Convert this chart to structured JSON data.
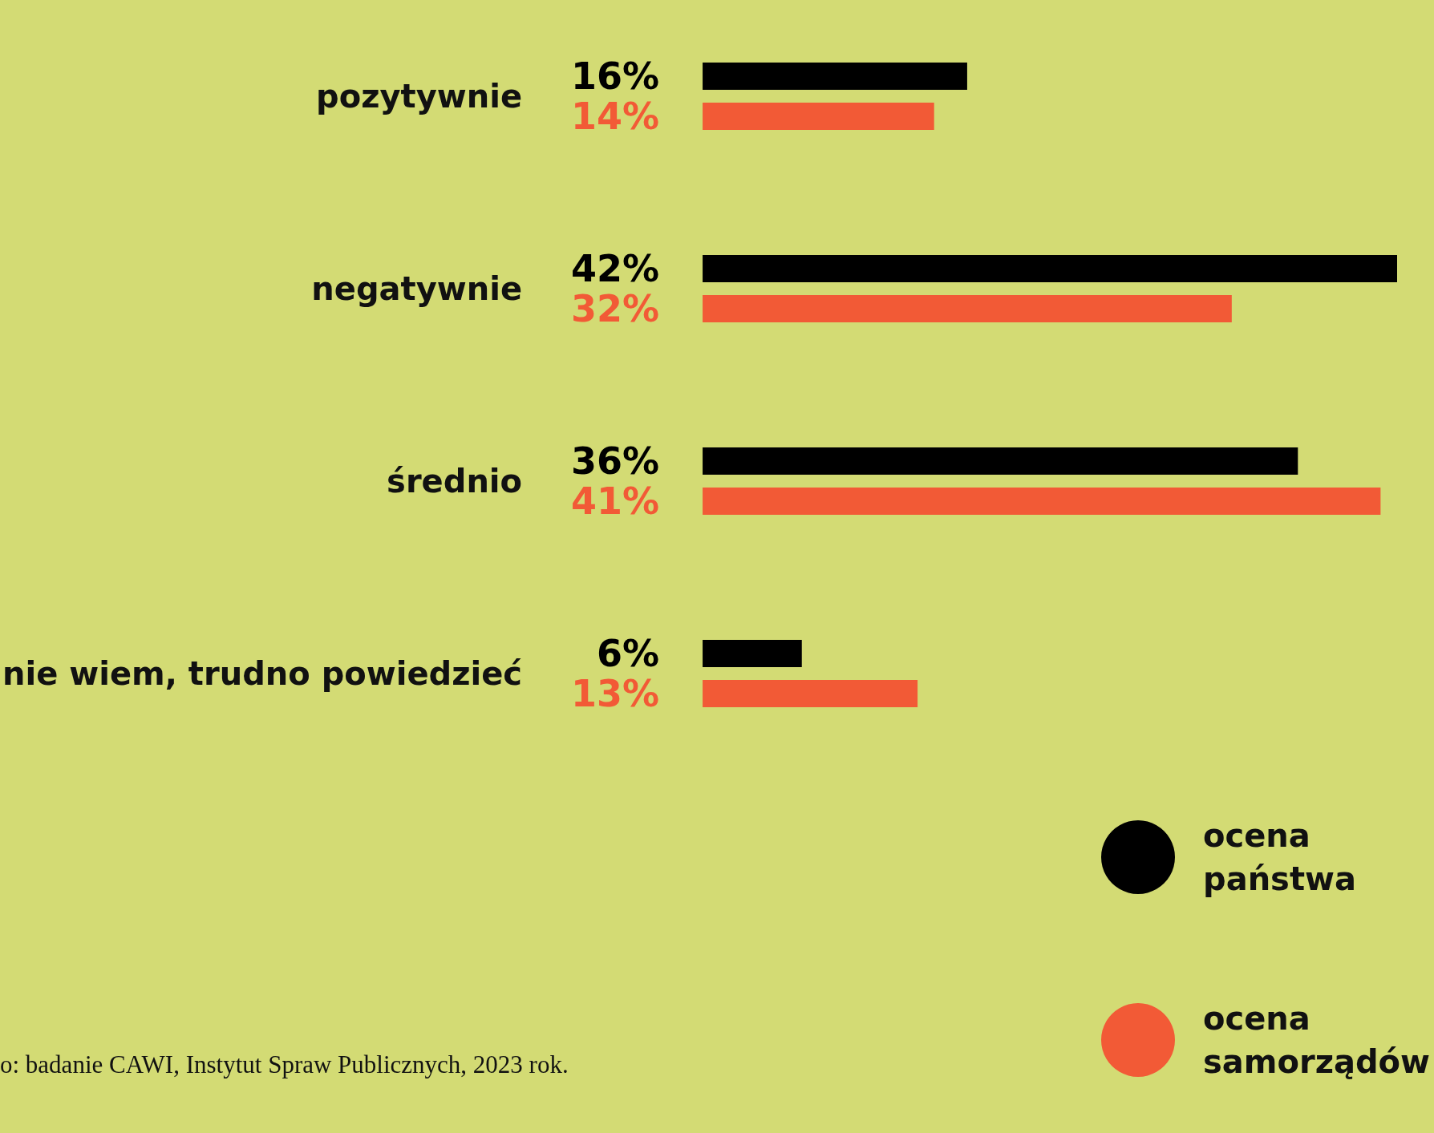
{
  "chart_data": {
    "type": "bar",
    "orientation": "horizontal",
    "categories": [
      "pozytywnie",
      "negatywnie",
      "średnio",
      "nie wiem, trudno powiedzieć"
    ],
    "series": [
      {
        "name": "ocena państwa",
        "color": "#000000",
        "values": [
          16,
          42,
          36,
          6
        ],
        "value_labels": [
          "16%",
          "42%",
          "36%",
          "6%"
        ]
      },
      {
        "name": "ocena samorządów",
        "color": "#f25a36",
        "values": [
          14,
          32,
          41,
          13
        ],
        "value_labels": [
          "14%",
          "32%",
          "41%",
          "13%"
        ]
      }
    ],
    "legend": "bottom right",
    "annotations": [
      "o: badanie CAWI, Instytut Spraw Publicznych, 2023 rok."
    ]
  }
}
